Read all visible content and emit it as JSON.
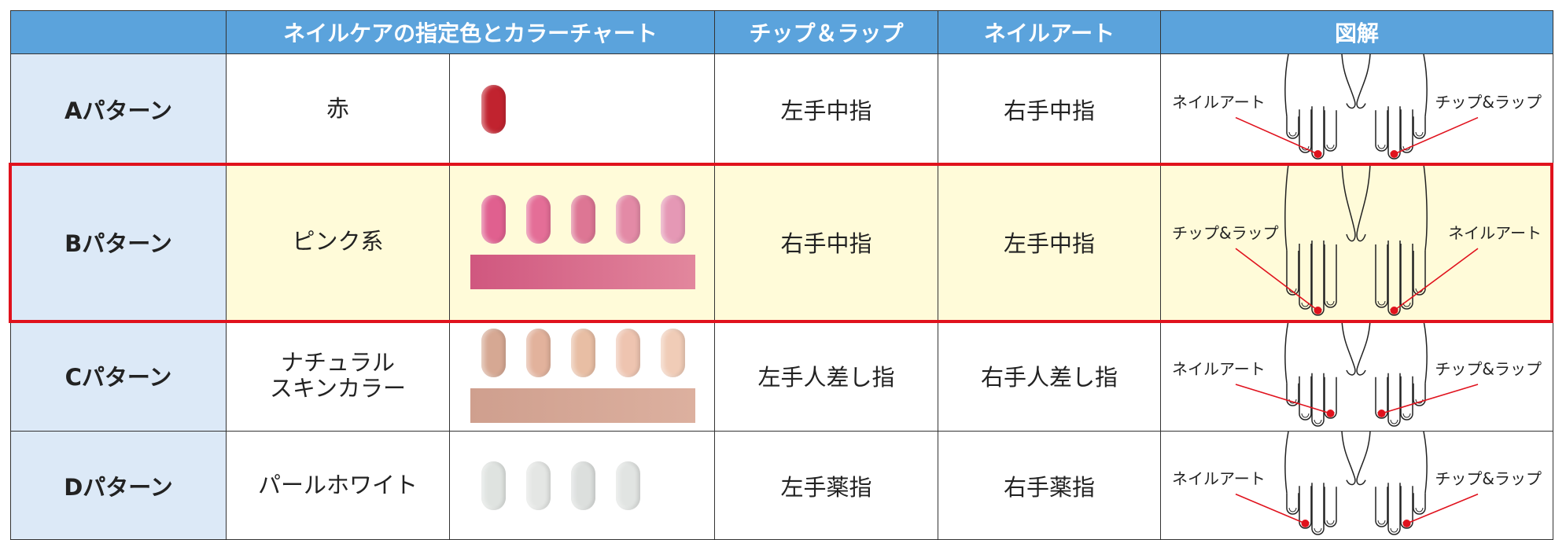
{
  "header": {
    "columns": [
      "ネイルケアの指定色とカラーチャート",
      "チップ＆ラップ",
      "ネイルアート",
      "図解"
    ]
  },
  "table": {
    "rows": [
      {
        "pattern": "Aパターン",
        "color_name": "赤",
        "swatches": [
          "#c1232f"
        ],
        "chip_wrap": "左手中指",
        "nail_art": "右手中指",
        "diagram": {
          "left_label": "ネイルアート",
          "right_label": "チップ&ラップ"
        }
      },
      {
        "pattern": "Bパターン",
        "color_name": "ピンク系",
        "swatches": [
          "#e0608f",
          "#e46e97",
          "#dd7694",
          "#e38aa6",
          "#e598b5"
        ],
        "bar": [
          "#d0577f",
          "#e2879d"
        ],
        "chip_wrap": "右手中指",
        "nail_art": "左手中指",
        "diagram": {
          "left_label": "チップ&ラップ",
          "right_label": "ネイルアート"
        }
      },
      {
        "pattern": "Cパターン",
        "color_name": "ナチュラル\nスキンカラー",
        "swatches": [
          "#d6a893",
          "#e2b29c",
          "#e8bea4",
          "#eec4b0",
          "#f0ccb7"
        ],
        "bar": [
          "#cf9f8e",
          "#dcb09f"
        ],
        "chip_wrap": "左手人差し指",
        "nail_art": "右手人差し指",
        "diagram": {
          "left_label": "ネイルアート",
          "right_label": "チップ&ラップ"
        }
      },
      {
        "pattern": "Dパターン",
        "color_name": "パールホワイト",
        "swatches": [
          "#dfe3e0",
          "#e4e6e4",
          "#dcdfdd",
          "#e1e4e2"
        ],
        "chip_wrap": "左手薬指",
        "nail_art": "右手薬指",
        "diagram": {
          "left_label": "ネイルアート",
          "right_label": "チップ&ラップ"
        }
      }
    ]
  }
}
